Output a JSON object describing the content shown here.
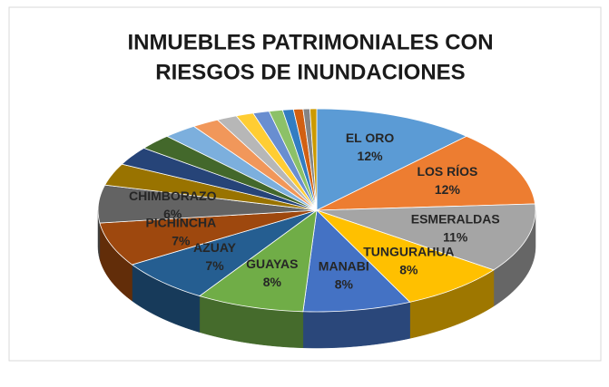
{
  "chart_data": {
    "type": "pie",
    "title": [
      "INMUEBLES PATRIMONIALES CON",
      "RIESGOS DE INUNDACIONES"
    ],
    "categories": [
      "EL ORO",
      "LOS RÍOS",
      "ESMERALDAS",
      "TUNGURAHUA",
      "MANABI",
      "GUAYAS",
      "AZUAY",
      "PICHINCHA",
      "CHIMBORAZO",
      null,
      null,
      null,
      null,
      null,
      null,
      null,
      null,
      null,
      null,
      null,
      null,
      null
    ],
    "values": [
      12,
      12,
      11,
      8,
      8,
      8,
      7,
      7,
      6,
      3.5,
      3,
      2.5,
      2.5,
      2,
      1.5,
      1.3,
      1.2,
      1,
      0.8,
      0.7,
      0.5,
      0.5
    ],
    "value_labels": [
      "12%",
      "12%",
      "11%",
      "8%",
      "8%",
      "8%",
      "7%",
      "7%",
      "6%",
      null,
      null,
      null,
      null,
      null,
      null,
      null,
      null,
      null,
      null,
      null,
      null,
      null
    ],
    "colors": [
      "#5b9bd5",
      "#ed7d31",
      "#a5a5a5",
      "#ffc000",
      "#4472c4",
      "#70ad47",
      "#255e91",
      "#9e480e",
      "#636363",
      "#997300",
      "#264478",
      "#43682b",
      "#7cafdd",
      "#f1975a",
      "#b7b7b7",
      "#ffcd33",
      "#698ed0",
      "#8cc168",
      "#327dc2",
      "#d26012",
      "#848484",
      "#cc9a00"
    ],
    "three_d": true
  }
}
